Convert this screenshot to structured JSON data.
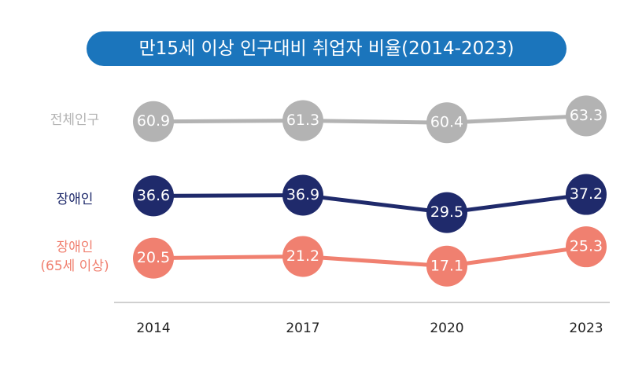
{
  "chart_data": {
    "type": "line",
    "title": "만15세 이상 인구대비 취업자 비율(2014-2023)",
    "categories": [
      "2014",
      "2017",
      "2020",
      "2023"
    ],
    "series": [
      {
        "name": "전체인구",
        "color": "#b3b3b3",
        "values": [
          60.9,
          61.3,
          60.4,
          63.3
        ]
      },
      {
        "name": "장애인",
        "color": "#1f2a6b",
        "values": [
          36.6,
          36.9,
          29.5,
          37.2
        ]
      },
      {
        "name": "장애인\n(65세 이상)",
        "color": "#f08070",
        "values": [
          20.5,
          21.2,
          17.1,
          25.3
        ]
      }
    ]
  }
}
